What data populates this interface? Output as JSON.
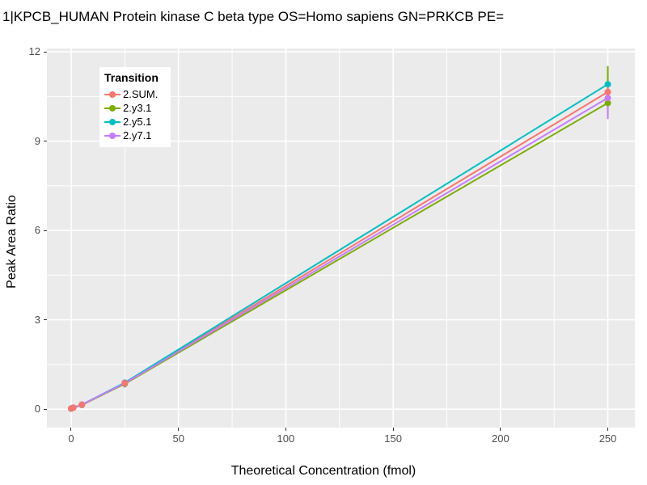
{
  "chart_data": {
    "type": "line",
    "title": "1|KPCB_HUMAN Protein kinase C beta type OS=Homo sapiens GN=PRKCB PE=",
    "xlabel": "Theoretical Concentration (fmol)",
    "ylabel": "Peak Area Ratio",
    "legend_title": "Transition",
    "legend_position": "top-left-inside",
    "grid": true,
    "panel_bg": "#EBEBEB",
    "grid_color": "#FFFFFF",
    "tick_text_color": "#4D4D4D",
    "xlim": [
      -11.3,
      262.6
    ],
    "ylim": [
      -0.62,
      12.11
    ],
    "x_ticks": [
      0,
      50,
      100,
      150,
      200,
      250
    ],
    "y_ticks": [
      0,
      3,
      6,
      9,
      12
    ],
    "x_minor_ticks": [
      25,
      75,
      125,
      175,
      225
    ],
    "y_minor_ticks": [
      1.5,
      4.5,
      7.5,
      10.5
    ],
    "series": [
      {
        "name": "2.SUM.",
        "color": "#F8766D",
        "x": [
          0,
          1,
          5,
          25,
          250
        ],
        "y": [
          0.02,
          0.05,
          0.15,
          0.88,
          10.65
        ],
        "error_bars": [
          {
            "x": 250,
            "low": 10.37,
            "high": 10.93
          }
        ]
      },
      {
        "name": "2.y3.1",
        "color": "#7CAE00",
        "x": [
          0,
          1,
          5,
          25,
          250
        ],
        "y": [
          0.02,
          0.05,
          0.14,
          0.85,
          10.28
        ],
        "error_bars": [
          {
            "x": 250,
            "low": 9.85,
            "high": 11.52
          },
          {
            "x": 25,
            "low": 0.75,
            "high": 0.92
          }
        ]
      },
      {
        "name": "2.y5.1",
        "color": "#00BFC4",
        "x": [
          0,
          1,
          5,
          25,
          250
        ],
        "y": [
          0.02,
          0.05,
          0.15,
          0.89,
          10.91
        ],
        "error_bars": [
          {
            "x": 250,
            "low": 10.7,
            "high": 11.1
          }
        ]
      },
      {
        "name": "2.y7.1",
        "color": "#C77CFF",
        "x": [
          0,
          1,
          5,
          25,
          250
        ],
        "y": [
          0.02,
          0.05,
          0.15,
          0.87,
          10.45
        ],
        "error_bars": [
          {
            "x": 250,
            "low": 9.74,
            "high": 10.45
          },
          {
            "x": 25,
            "low": 0.72,
            "high": 0.95
          }
        ]
      }
    ]
  }
}
